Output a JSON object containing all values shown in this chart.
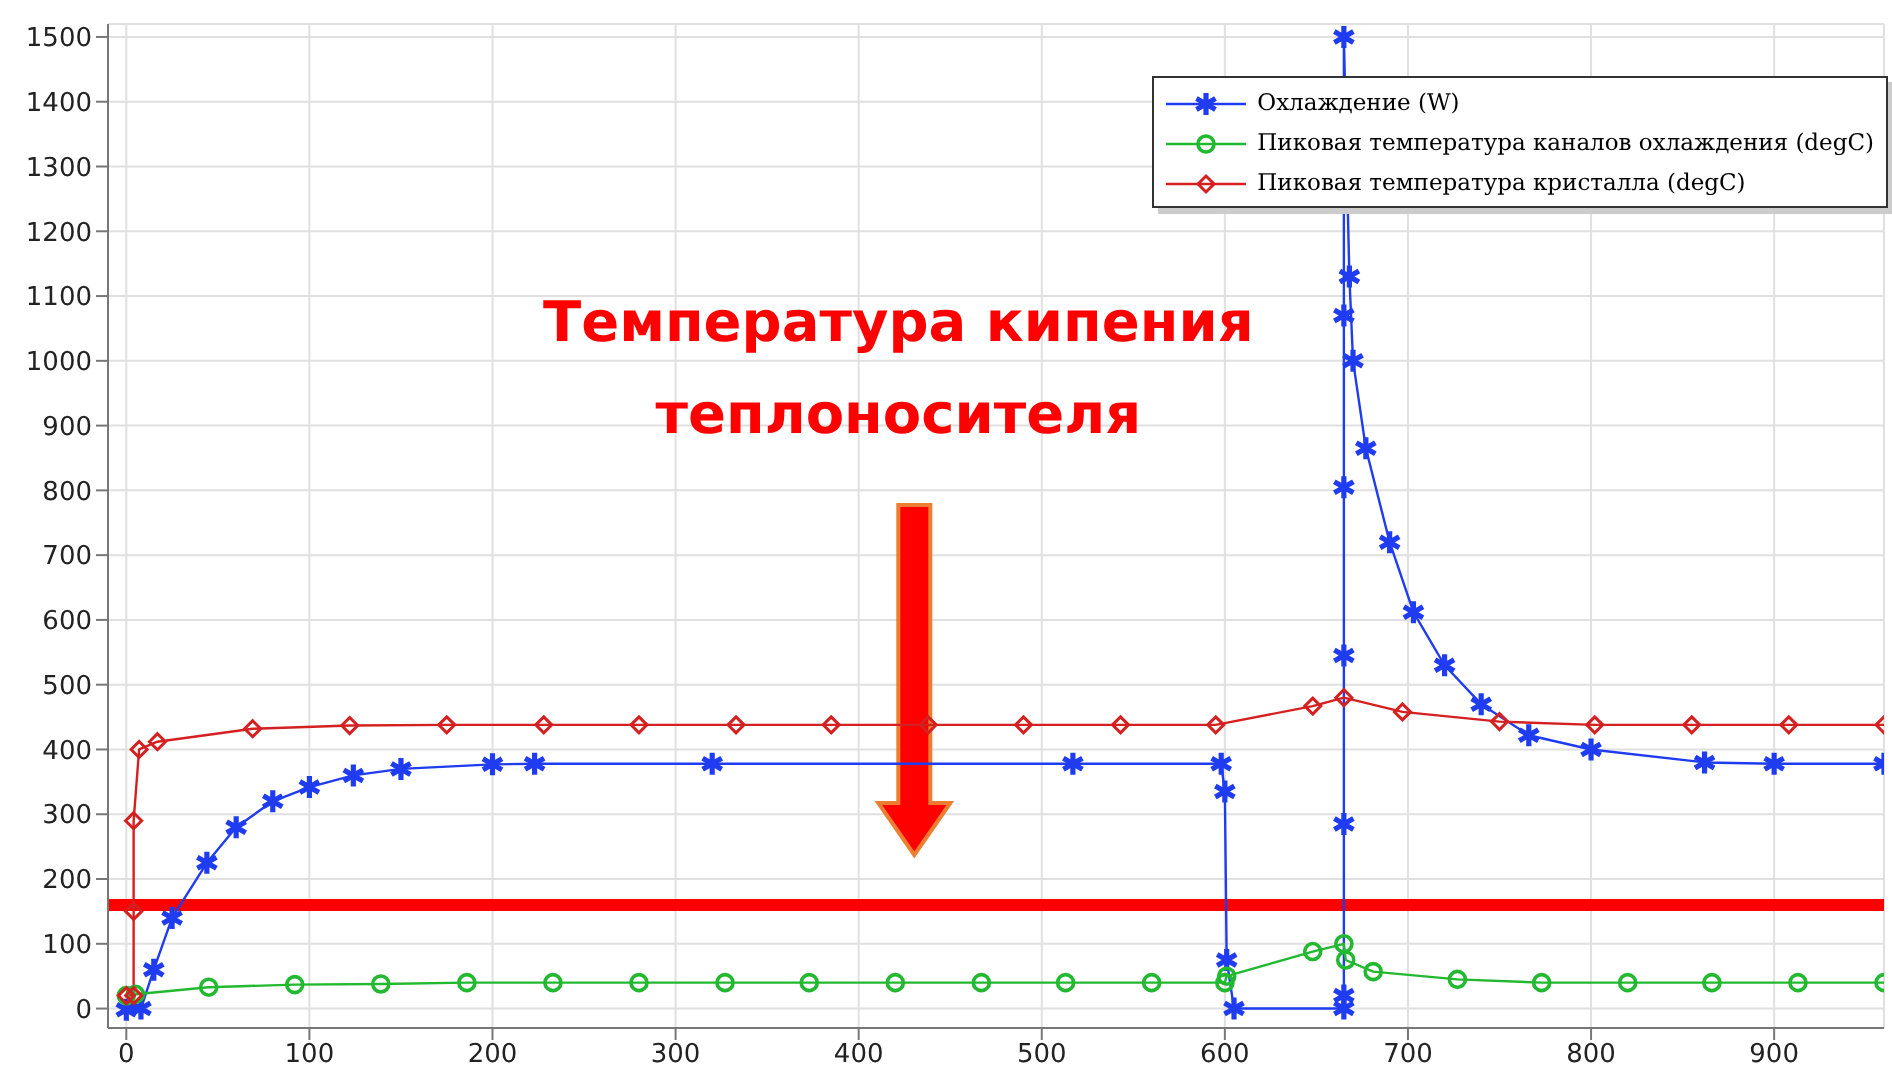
{
  "chart_data": {
    "type": "line",
    "xlim": [
      -10,
      960
    ],
    "ylim": [
      -30,
      1520
    ],
    "xticks": [
      0,
      100,
      200,
      300,
      400,
      500,
      600,
      700,
      800,
      900
    ],
    "yticks": [
      0,
      100,
      200,
      300,
      400,
      500,
      600,
      700,
      800,
      900,
      1000,
      1100,
      1200,
      1300,
      1400,
      1500
    ],
    "grid": true,
    "legend": "top right",
    "line_style": "solid",
    "series": [
      {
        "name": "Охлаждение (W)",
        "color": "#1f3cf0",
        "marker": "cross",
        "x": [
          0,
          8,
          15,
          25,
          44,
          60,
          80,
          100,
          124,
          150,
          200,
          223,
          320,
          517,
          598,
          600,
          601,
          605,
          665,
          665,
          665,
          665,
          665,
          665,
          665,
          668,
          670,
          677,
          690,
          703,
          720,
          740,
          766,
          800,
          862,
          900,
          960
        ],
        "values": [
          -2,
          0,
          60,
          140,
          225,
          280,
          320,
          342,
          360,
          370,
          377,
          378,
          378,
          378,
          378,
          335,
          75,
          0,
          0,
          20,
          285,
          545,
          805,
          1070,
          1500,
          1130,
          1000,
          865,
          720,
          612,
          530,
          470,
          422,
          400,
          380,
          378,
          378
        ]
      },
      {
        "name": "Пиковая температура каналов охлаждения (degC)",
        "color": "#22b830",
        "marker": "circle",
        "x": [
          0,
          5,
          45,
          92,
          139,
          186,
          233,
          280,
          327,
          373,
          420,
          467,
          513,
          560,
          600,
          601,
          648,
          665,
          666,
          681,
          727,
          773,
          820,
          866,
          913,
          960
        ],
        "values": [
          20,
          22,
          33,
          37,
          38,
          40,
          40,
          40,
          40,
          40,
          40,
          40,
          40,
          40,
          40,
          50,
          88,
          100,
          75,
          57,
          45,
          40,
          40,
          40,
          40,
          40
        ]
      },
      {
        "name": "Пиковая температура кристалла (degC)",
        "color": "#d42020",
        "marker": "diamond",
        "x": [
          0,
          4,
          4,
          4,
          7,
          17,
          69,
          122,
          175,
          228,
          280,
          333,
          385,
          438,
          490,
          543,
          595,
          648,
          665,
          697,
          750,
          802,
          855,
          908,
          960
        ],
        "values": [
          20,
          20,
          150,
          290,
          400,
          412,
          432,
          437,
          438,
          438,
          438,
          438,
          438,
          438,
          438,
          438,
          438,
          467,
          480,
          458,
          443,
          438,
          438,
          438,
          438
        ]
      }
    ],
    "ref_lines": [
      {
        "axis": "y",
        "value": 160,
        "color": "#ff0000",
        "label": "Температура кипения теплоносителя"
      }
    ]
  }
}
